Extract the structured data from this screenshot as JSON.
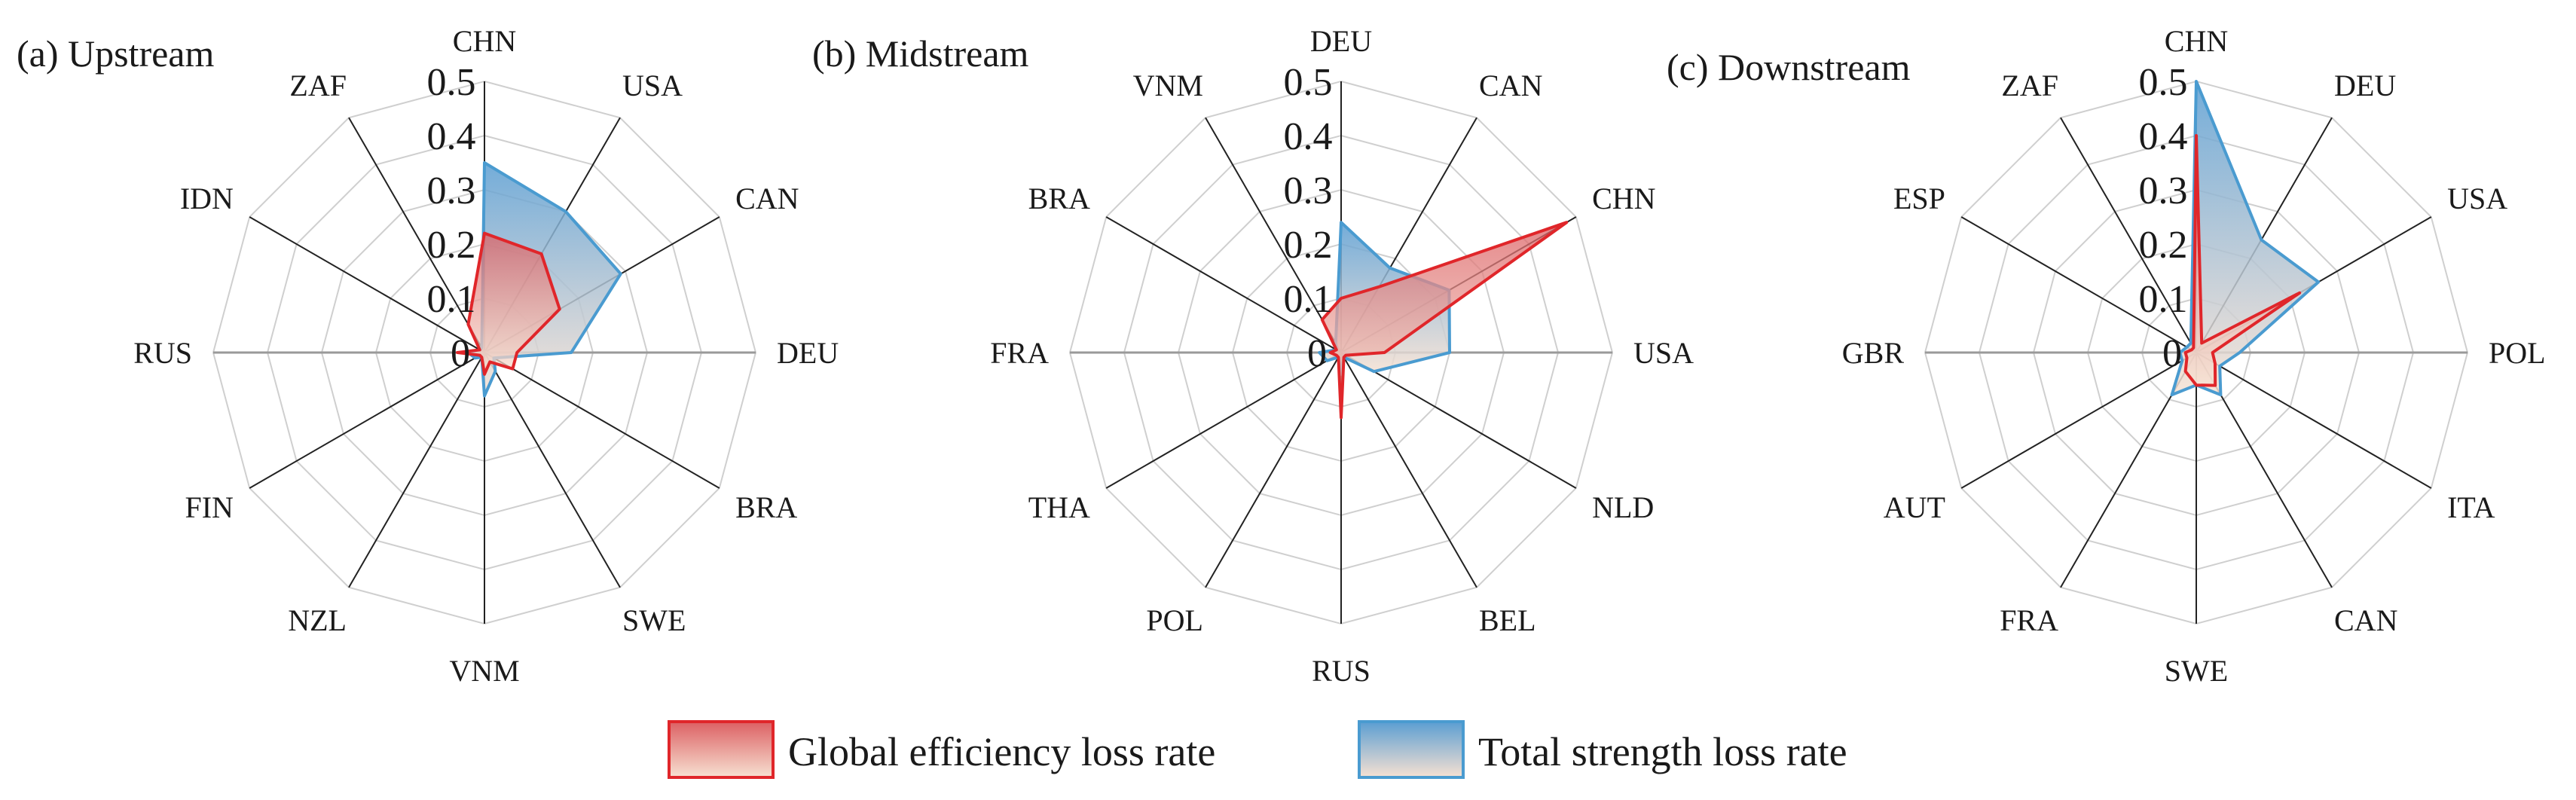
{
  "chart_data": [
    {
      "type": "radar",
      "title": "(a) Upstream",
      "categories": [
        "CHN",
        "USA",
        "CAN",
        "DEU",
        "BRA",
        "SWE",
        "VNM",
        "NZL",
        "FIN",
        "RUS",
        "IDN",
        "ZAF"
      ],
      "rmax": 0.5,
      "ticks": [
        "0",
        "0.1",
        "0.2",
        "0.3",
        "0.4",
        "0.5"
      ],
      "series": [
        {
          "name": "Global efficiency loss rate",
          "values": [
            0.22,
            0.21,
            0.16,
            0.06,
            0.06,
            0.02,
            0.04,
            0.01,
            0.01,
            0.05,
            0.01,
            0.06
          ]
        },
        {
          "name": "Total strength loss rate",
          "values": [
            0.35,
            0.3,
            0.29,
            0.16,
            0.02,
            0.04,
            0.08,
            0.01,
            0.02,
            0.03,
            0.01,
            0.01
          ]
        }
      ]
    },
    {
      "type": "radar",
      "title": "(b) Midstream",
      "categories": [
        "DEU",
        "CAN",
        "CHN",
        "USA",
        "NLD",
        "BEL",
        "RUS",
        "POL",
        "THA",
        "FRA",
        "BRA",
        "VNM"
      ],
      "rmax": 0.5,
      "ticks": [
        "0",
        "0.1",
        "0.2",
        "0.3",
        "0.4",
        "0.5"
      ],
      "series": [
        {
          "name": "Global efficiency loss rate",
          "values": [
            0.1,
            0.14,
            0.48,
            0.08,
            0.01,
            0.01,
            0.12,
            0.01,
            0.01,
            0.02,
            0.01,
            0.07
          ]
        },
        {
          "name": "Total strength loss rate",
          "values": [
            0.24,
            0.18,
            0.23,
            0.2,
            0.07,
            0.01,
            0.04,
            0.01,
            0.03,
            0.04,
            0.01,
            0.02
          ]
        }
      ]
    },
    {
      "type": "radar",
      "title": "(c) Downstream",
      "categories": [
        "CHN",
        "DEU",
        "USA",
        "POL",
        "ITA",
        "CAN",
        "SWE",
        "FRA",
        "AUT",
        "GBR",
        "ESP",
        "ZAF"
      ],
      "rmax": 0.5,
      "ticks": [
        "0",
        "0.1",
        "0.2",
        "0.3",
        "0.4",
        "0.5"
      ],
      "series": [
        {
          "name": "Global efficiency loss rate",
          "values": [
            0.4,
            0.02,
            0.22,
            0.03,
            0.04,
            0.07,
            0.06,
            0.04,
            0.02,
            0.02,
            0.01,
            0.01
          ]
        },
        {
          "name": "Total strength loss rate",
          "values": [
            0.5,
            0.24,
            0.26,
            0.08,
            0.05,
            0.09,
            0.06,
            0.09,
            0.03,
            0.03,
            0.02,
            0.02
          ]
        }
      ]
    }
  ],
  "legend": {
    "items": [
      {
        "label": "Global efficiency loss rate",
        "color": "#e0262a"
      },
      {
        "label": "Total strength loss rate",
        "color": "#4a9bd0"
      }
    ]
  },
  "colors": {
    "red": "#e0262a",
    "blue": "#4a9bd0",
    "fill_light": "#f7e1d2",
    "grid": "#cfcfcf",
    "spoke": "#222222",
    "axis_h": "#9a9a9a"
  }
}
